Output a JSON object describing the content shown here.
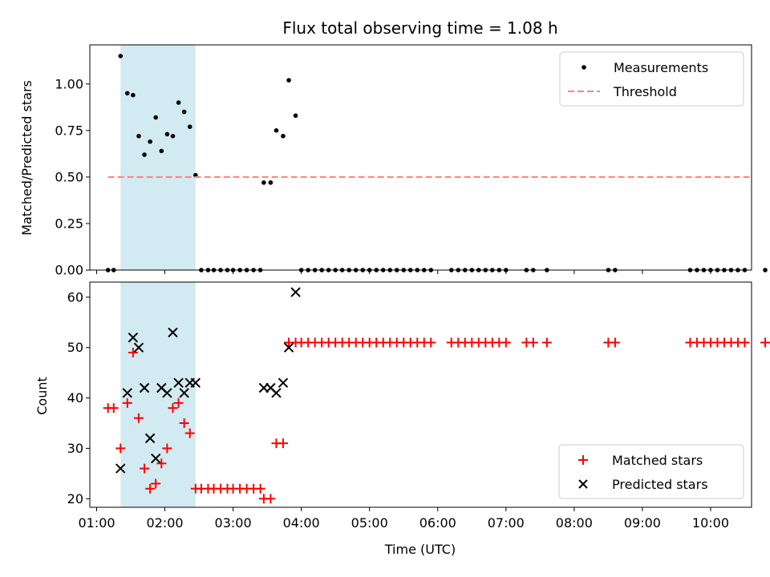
{
  "chart_data": [
    {
      "type": "scatter",
      "title": "Flux total observing time = 1.08 h",
      "xlabel": "",
      "ylabel": "Matched/Predicted stars",
      "xlim": [
        "00:54",
        "10:36"
      ],
      "ylim": [
        0,
        1.21
      ],
      "yticks": [
        "0.00",
        "0.25",
        "0.50",
        "0.75",
        "1.00"
      ],
      "yticks_values": [
        0,
        0.25,
        0.5,
        0.75,
        1.0
      ],
      "shaded_region": {
        "x_start": "01:21",
        "x_end": "02:27",
        "color": "#add8e6"
      },
      "legend_position": "upper right",
      "series": [
        {
          "name": "Measurements",
          "kind": "scatter",
          "marker": "dot",
          "color": "#000000",
          "points": [
            [
              "01:10",
              0
            ],
            [
              "01:15",
              0
            ],
            [
              "01:21",
              1.15
            ],
            [
              "01:27",
              0.95
            ],
            [
              "01:32",
              0.94
            ],
            [
              "01:37",
              0.72
            ],
            [
              "01:42",
              0.62
            ],
            [
              "01:47",
              0.69
            ],
            [
              "01:52",
              0.82
            ],
            [
              "01:57",
              0.64
            ],
            [
              "02:02",
              0.73
            ],
            [
              "02:07",
              0.72
            ],
            [
              "02:12",
              0.9
            ],
            [
              "02:17",
              0.85
            ],
            [
              "02:22",
              0.77
            ],
            [
              "02:27",
              0.51
            ],
            [
              "02:32",
              0
            ],
            [
              "02:38",
              0
            ],
            [
              "02:43",
              0
            ],
            [
              "02:49",
              0
            ],
            [
              "02:55",
              0
            ],
            [
              "03:00",
              0
            ],
            [
              "03:06",
              0
            ],
            [
              "03:12",
              0
            ],
            [
              "03:18",
              0
            ],
            [
              "03:24",
              0
            ],
            [
              "03:27",
              0.47
            ],
            [
              "03:33",
              0.47
            ],
            [
              "03:38",
              0.75
            ],
            [
              "03:44",
              0.72
            ],
            [
              "03:49",
              1.02
            ],
            [
              "03:55",
              0.83
            ],
            [
              "04:00",
              0
            ],
            [
              "04:06",
              0
            ],
            [
              "04:12",
              0
            ],
            [
              "04:18",
              0
            ],
            [
              "04:24",
              0
            ],
            [
              "04:30",
              0
            ],
            [
              "04:36",
              0
            ],
            [
              "04:42",
              0
            ],
            [
              "04:48",
              0
            ],
            [
              "04:54",
              0
            ],
            [
              "05:00",
              0
            ],
            [
              "05:06",
              0
            ],
            [
              "05:12",
              0
            ],
            [
              "05:18",
              0
            ],
            [
              "05:24",
              0
            ],
            [
              "05:30",
              0
            ],
            [
              "05:36",
              0
            ],
            [
              "05:42",
              0
            ],
            [
              "05:48",
              0
            ],
            [
              "05:54",
              0
            ],
            [
              "06:12",
              0
            ],
            [
              "06:18",
              0
            ],
            [
              "06:24",
              0
            ],
            [
              "06:30",
              0
            ],
            [
              "06:36",
              0
            ],
            [
              "06:42",
              0
            ],
            [
              "06:48",
              0
            ],
            [
              "06:54",
              0
            ],
            [
              "07:00",
              0
            ],
            [
              "07:18",
              0
            ],
            [
              "07:24",
              0
            ],
            [
              "07:36",
              0
            ],
            [
              "08:30",
              0
            ],
            [
              "08:36",
              0
            ],
            [
              "09:42",
              0
            ],
            [
              "09:48",
              0
            ],
            [
              "09:54",
              0
            ],
            [
              "10:00",
              0
            ],
            [
              "10:06",
              0
            ],
            [
              "10:12",
              0
            ],
            [
              "10:18",
              0
            ],
            [
              "10:24",
              0
            ],
            [
              "10:30",
              0
            ],
            [
              "10:48",
              0
            ]
          ]
        },
        {
          "name": "Threshold",
          "kind": "line",
          "dash": true,
          "color": "#ff7f7f",
          "points": [
            [
              "01:10",
              0.5
            ],
            [
              "10:36",
              0.5
            ]
          ]
        }
      ]
    },
    {
      "type": "scatter",
      "title": "",
      "xlabel": "Time (UTC)",
      "ylabel": "Count",
      "xlim": [
        "00:54",
        "10:36"
      ],
      "ylim": [
        18.3,
        63
      ],
      "xticks": [
        "01:00",
        "02:00",
        "03:00",
        "04:00",
        "05:00",
        "06:00",
        "07:00",
        "08:00",
        "09:00",
        "10:00"
      ],
      "yticks": [
        "20",
        "30",
        "40",
        "50",
        "60"
      ],
      "yticks_values": [
        20,
        30,
        40,
        50,
        60
      ],
      "shaded_region": {
        "x_start": "01:21",
        "x_end": "02:27",
        "color": "#add8e6"
      },
      "legend_position": "lower right",
      "series": [
        {
          "name": "Matched stars",
          "kind": "scatter",
          "marker": "plus",
          "color": "#ff0000",
          "points": [
            [
              "01:10",
              38
            ],
            [
              "01:15",
              38
            ],
            [
              "01:21",
              30
            ],
            [
              "01:27",
              39
            ],
            [
              "01:32",
              49
            ],
            [
              "01:37",
              36
            ],
            [
              "01:42",
              26
            ],
            [
              "01:47",
              22
            ],
            [
              "01:52",
              23
            ],
            [
              "01:57",
              27
            ],
            [
              "02:02",
              30
            ],
            [
              "02:07",
              38
            ],
            [
              "02:12",
              39
            ],
            [
              "02:17",
              35
            ],
            [
              "02:22",
              33
            ],
            [
              "02:27",
              22
            ],
            [
              "02:32",
              22
            ],
            [
              "02:38",
              22
            ],
            [
              "02:43",
              22
            ],
            [
              "02:49",
              22
            ],
            [
              "02:55",
              22
            ],
            [
              "03:00",
              22
            ],
            [
              "03:06",
              22
            ],
            [
              "03:12",
              22
            ],
            [
              "03:18",
              22
            ],
            [
              "03:24",
              22
            ],
            [
              "03:27",
              20
            ],
            [
              "03:33",
              20
            ],
            [
              "03:38",
              31
            ],
            [
              "03:44",
              31
            ],
            [
              "03:49",
              51
            ],
            [
              "03:55",
              51
            ],
            [
              "04:00",
              51
            ],
            [
              "04:06",
              51
            ],
            [
              "04:12",
              51
            ],
            [
              "04:18",
              51
            ],
            [
              "04:24",
              51
            ],
            [
              "04:30",
              51
            ],
            [
              "04:36",
              51
            ],
            [
              "04:42",
              51
            ],
            [
              "04:48",
              51
            ],
            [
              "04:54",
              51
            ],
            [
              "05:00",
              51
            ],
            [
              "05:06",
              51
            ],
            [
              "05:12",
              51
            ],
            [
              "05:18",
              51
            ],
            [
              "05:24",
              51
            ],
            [
              "05:30",
              51
            ],
            [
              "05:36",
              51
            ],
            [
              "05:42",
              51
            ],
            [
              "05:48",
              51
            ],
            [
              "05:54",
              51
            ],
            [
              "06:12",
              51
            ],
            [
              "06:18",
              51
            ],
            [
              "06:24",
              51
            ],
            [
              "06:30",
              51
            ],
            [
              "06:36",
              51
            ],
            [
              "06:42",
              51
            ],
            [
              "06:48",
              51
            ],
            [
              "06:54",
              51
            ],
            [
              "07:00",
              51
            ],
            [
              "07:18",
              51
            ],
            [
              "07:24",
              51
            ],
            [
              "07:36",
              51
            ],
            [
              "08:30",
              51
            ],
            [
              "08:36",
              51
            ],
            [
              "09:42",
              51
            ],
            [
              "09:48",
              51
            ],
            [
              "09:54",
              51
            ],
            [
              "10:00",
              51
            ],
            [
              "10:06",
              51
            ],
            [
              "10:12",
              51
            ],
            [
              "10:18",
              51
            ],
            [
              "10:24",
              51
            ],
            [
              "10:30",
              51
            ],
            [
              "10:48",
              51
            ]
          ]
        },
        {
          "name": "Predicted stars",
          "kind": "scatter",
          "marker": "x",
          "color": "#000000",
          "points": [
            [
              "01:21",
              26
            ],
            [
              "01:27",
              41
            ],
            [
              "01:32",
              52
            ],
            [
              "01:37",
              50
            ],
            [
              "01:42",
              42
            ],
            [
              "01:47",
              32
            ],
            [
              "01:52",
              28
            ],
            [
              "01:57",
              42
            ],
            [
              "02:02",
              41
            ],
            [
              "02:07",
              53
            ],
            [
              "02:12",
              43
            ],
            [
              "02:17",
              41
            ],
            [
              "02:22",
              43
            ],
            [
              "02:27",
              43
            ],
            [
              "03:27",
              42
            ],
            [
              "03:33",
              42
            ],
            [
              "03:38",
              41
            ],
            [
              "03:44",
              43
            ],
            [
              "03:49",
              50
            ],
            [
              "03:55",
              61
            ]
          ]
        }
      ]
    }
  ]
}
